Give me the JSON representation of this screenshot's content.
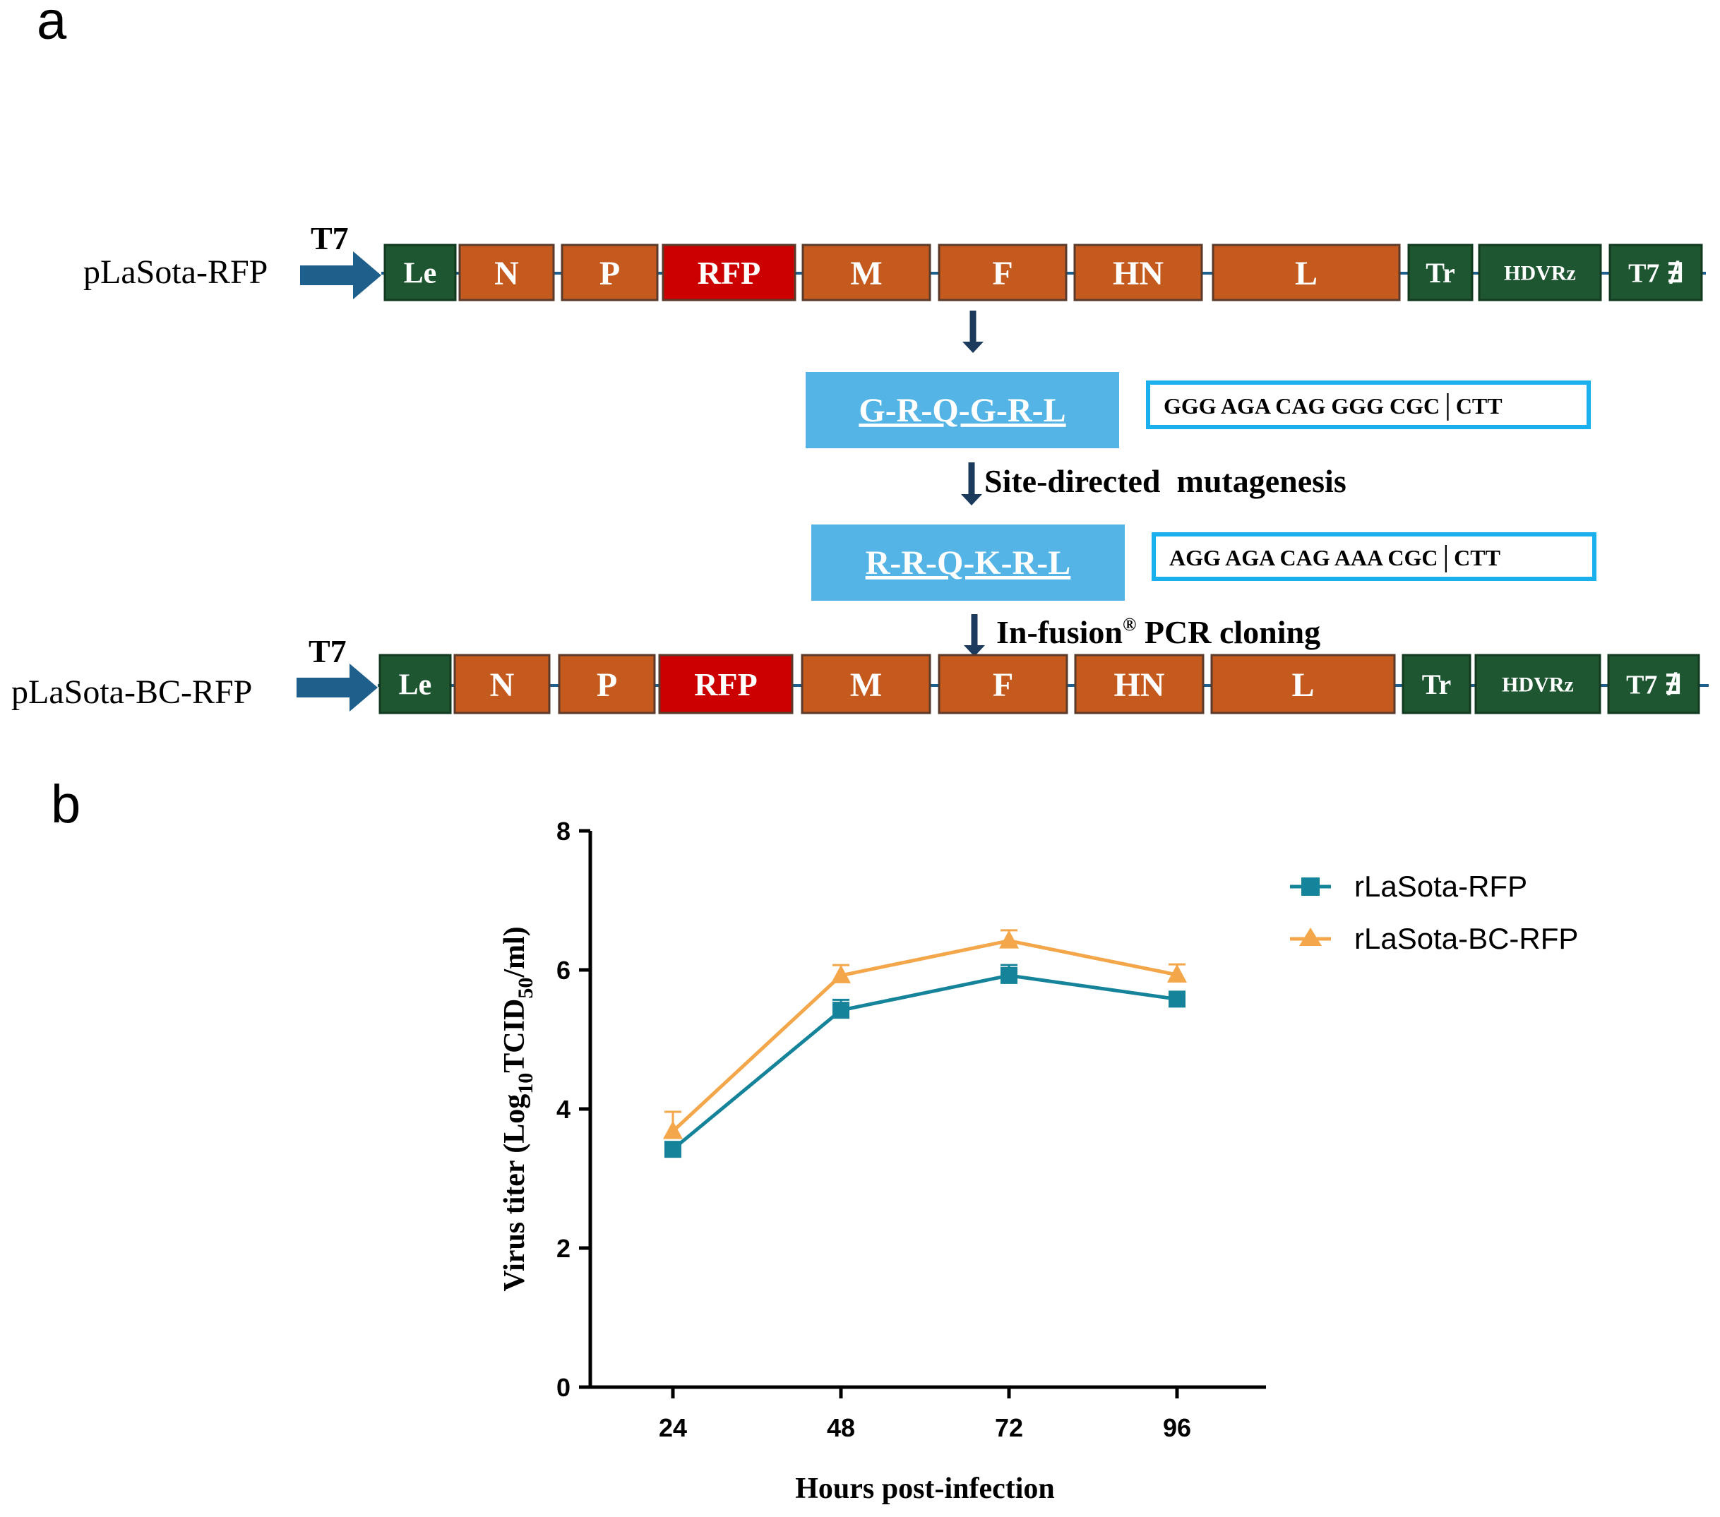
{
  "panel_a": {
    "label": "a",
    "constructs": [
      {
        "name": "pLaSota-RFP",
        "promoter": "T7",
        "genes": [
          "Le",
          "N",
          "P",
          "RFP",
          "M",
          "F",
          "HN",
          "L",
          "Tr",
          "HDVRz",
          "T7 ∄"
        ]
      },
      {
        "name": "pLaSota-BC-RFP",
        "promoter": "T7",
        "genes": [
          "Le",
          "N",
          "P",
          "RFP",
          "M",
          "F",
          "HN",
          "L",
          "Tr",
          "HDVRz",
          "T7 ∄"
        ]
      }
    ],
    "original_motif": {
      "aa": "G-R-Q-G-R-L",
      "nt": "GGG AGA CAG GGG CGC│CTT"
    },
    "mutated_motif": {
      "aa": "R-R-Q-K-R-L",
      "nt": "AGG AGA CAG AAA CGC│CTT"
    },
    "step1": "Site-directed  mutagenesis",
    "step2_prefix": "In-fusion",
    "step2_sup": "®",
    "step2_suffix": " PCR cloning",
    "colors": {
      "regulatory": "#1e5631",
      "gene": "#c55a1e",
      "rfp": "#cc0000",
      "motif": "#55b4e6",
      "promoter_arrow": "#1f5f8b"
    }
  },
  "panel_b": {
    "label": "b",
    "chart_data": {
      "type": "line",
      "x": [
        24,
        48,
        72,
        96
      ],
      "xticks": [
        "24",
        "48",
        "72",
        "96"
      ],
      "yticks": [
        "0",
        "2",
        "4",
        "6",
        "8"
      ],
      "ylim": [
        0,
        8
      ],
      "xlabel": "Hours post-infection",
      "ylabel_parts": [
        "Virus titer (Log",
        "10",
        "TCID",
        "50",
        "/ml)"
      ],
      "series": [
        {
          "name": "rLaSota-RFP",
          "marker": "square",
          "color": "#15839a",
          "values": [
            3.42,
            5.42,
            5.92,
            5.58
          ],
          "errors": [
            0.05,
            0.15,
            0.15,
            0.05
          ]
        },
        {
          "name": "rLaSota-BC-RFP",
          "marker": "triangle",
          "color": "#f4a64a",
          "values": [
            3.68,
            5.92,
            6.42,
            5.93
          ],
          "errors": [
            0.28,
            0.15,
            0.15,
            0.15
          ]
        }
      ],
      "legend": "top-right"
    }
  }
}
